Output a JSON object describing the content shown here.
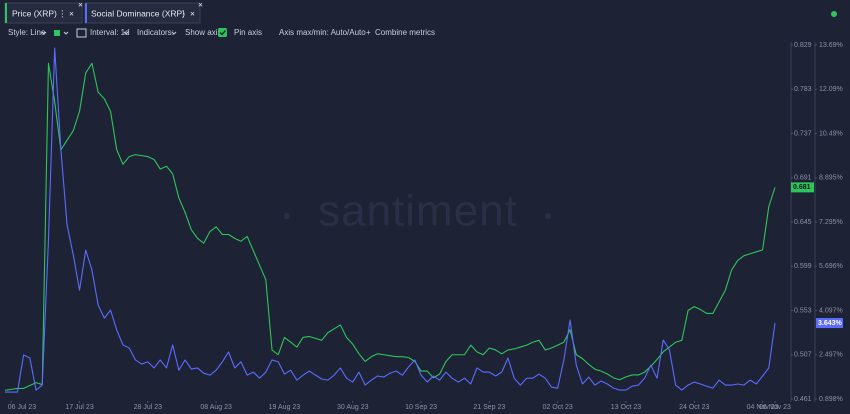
{
  "toolbar": {
    "style": "Style: Line",
    "interval": "Interval: 1d",
    "indicators": "Indicators:",
    "show_axis": "Show axis",
    "pin_axis": "Pin axis",
    "axis_minmax": "Axis max/min: Auto/Auto",
    "combine": "Combine metrics"
  },
  "chart_data": {
    "type": "line",
    "watermark": "santiment",
    "x": [
      "2023-07-05",
      "2023-07-06",
      "2023-07-07",
      "2023-07-08",
      "2023-07-09",
      "2023-07-10",
      "2023-07-11",
      "2023-07-12",
      "2023-07-13",
      "2023-07-14",
      "2023-07-15",
      "2023-07-16",
      "2023-07-17",
      "2023-07-18",
      "2023-07-19",
      "2023-07-20",
      "2023-07-21",
      "2023-07-22",
      "2023-07-23",
      "2023-07-24",
      "2023-07-25",
      "2023-07-26",
      "2023-07-27",
      "2023-07-28",
      "2023-07-29",
      "2023-07-30",
      "2023-07-31",
      "2023-08-01",
      "2023-08-02",
      "2023-08-03",
      "2023-08-04",
      "2023-08-05",
      "2023-08-06",
      "2023-08-07",
      "2023-08-08",
      "2023-08-09",
      "2023-08-10",
      "2023-08-11",
      "2023-08-12",
      "2023-08-13",
      "2023-08-14",
      "2023-08-15",
      "2023-08-16",
      "2023-08-17",
      "2023-08-18",
      "2023-08-19",
      "2023-08-20",
      "2023-08-21",
      "2023-08-22",
      "2023-08-23",
      "2023-08-24",
      "2023-08-25",
      "2023-08-26",
      "2023-08-27",
      "2023-08-28",
      "2023-08-29",
      "2023-08-30",
      "2023-08-31",
      "2023-09-01",
      "2023-09-02",
      "2023-09-03",
      "2023-09-04",
      "2023-09-05",
      "2023-09-06",
      "2023-09-07",
      "2023-09-08",
      "2023-09-09",
      "2023-09-10",
      "2023-09-11",
      "2023-09-12",
      "2023-09-13",
      "2023-09-14",
      "2023-09-15",
      "2023-09-16",
      "2023-09-17",
      "2023-09-18",
      "2023-09-19",
      "2023-09-20",
      "2023-09-21",
      "2023-09-22",
      "2023-09-23",
      "2023-09-24",
      "2023-09-25",
      "2023-09-26",
      "2023-09-27",
      "2023-09-28",
      "2023-09-29",
      "2023-09-30",
      "2023-10-01",
      "2023-10-02",
      "2023-10-03",
      "2023-10-04",
      "2023-10-05",
      "2023-10-06",
      "2023-10-07",
      "2023-10-08",
      "2023-10-09",
      "2023-10-10",
      "2023-10-11",
      "2023-10-12",
      "2023-10-13",
      "2023-10-14",
      "2023-10-15",
      "2023-10-16",
      "2023-10-17",
      "2023-10-18",
      "2023-10-19",
      "2023-10-20",
      "2023-10-21",
      "2023-10-22",
      "2023-10-23",
      "2023-10-24",
      "2023-10-25",
      "2023-10-26",
      "2023-10-27",
      "2023-10-28",
      "2023-10-29",
      "2023-10-30",
      "2023-10-31",
      "2023-11-01",
      "2023-11-02",
      "2023-11-03",
      "2023-11-04",
      "2023-11-05",
      "2023-11-06"
    ],
    "xlim": [
      "2023-07-05",
      "2023-11-06"
    ],
    "xticks": [
      {
        "value": "2023-07-06",
        "label": "06 Jul 23"
      },
      {
        "value": "2023-07-17",
        "label": "17 Jul 23"
      },
      {
        "value": "2023-07-28",
        "label": "28 Jul 23"
      },
      {
        "value": "2023-08-08",
        "label": "08 Aug 23"
      },
      {
        "value": "2023-08-19",
        "label": "19 Aug 23"
      },
      {
        "value": "2023-08-30",
        "label": "30 Aug 23"
      },
      {
        "value": "2023-09-10",
        "label": "10 Sep 23"
      },
      {
        "value": "2023-09-21",
        "label": "21 Sep 23"
      },
      {
        "value": "2023-10-02",
        "label": "02 Oct 23"
      },
      {
        "value": "2023-10-13",
        "label": "13 Oct 23"
      },
      {
        "value": "2023-10-24",
        "label": "24 Oct 23"
      },
      {
        "value": "2023-11-04",
        "label": "04 Nov 23"
      },
      {
        "value": "2023-11-06",
        "label": "06 Nov 23"
      }
    ],
    "ylim": [
      0.461,
      0.829
    ],
    "yticks": [
      0.461,
      0.507,
      0.553,
      0.599,
      0.645,
      0.691,
      0.737,
      0.783,
      0.829
    ],
    "y2lim": [
      0.898,
      13.69
    ],
    "y2ticks": [
      {
        "value": 0.898,
        "label": "0.898%"
      },
      {
        "value": 2.497,
        "label": "2.497%"
      },
      {
        "value": 4.097,
        "label": "4.097%"
      },
      {
        "value": 5.696,
        "label": "5.696%"
      },
      {
        "value": 7.295,
        "label": "7.295%"
      },
      {
        "value": 8.895,
        "label": "8.895%"
      },
      {
        "value": 10.49,
        "label": "10.49%"
      },
      {
        "value": 12.09,
        "label": "12.09%"
      },
      {
        "value": 13.69,
        "label": "13.69%"
      }
    ],
    "series": [
      {
        "name": "Price (XRP)",
        "color": "#2ec55a",
        "values": [
          0.47,
          0.471,
          0.472,
          0.472,
          0.475,
          0.478,
          0.476,
          0.81,
          0.77,
          0.72,
          0.73,
          0.74,
          0.76,
          0.8,
          0.81,
          0.78,
          0.773,
          0.76,
          0.72,
          0.705,
          0.713,
          0.715,
          0.714,
          0.713,
          0.71,
          0.7,
          0.703,
          0.695,
          0.67,
          0.655,
          0.637,
          0.628,
          0.623,
          0.635,
          0.64,
          0.632,
          0.632,
          0.628,
          0.625,
          0.63,
          0.615,
          0.6,
          0.585,
          0.512,
          0.507,
          0.525,
          0.52,
          0.515,
          0.525,
          0.526,
          0.524,
          0.522,
          0.53,
          0.534,
          0.538,
          0.525,
          0.518,
          0.508,
          0.5,
          0.505,
          0.508,
          0.507,
          0.506,
          0.505,
          0.505,
          0.504,
          0.5,
          0.49,
          0.49,
          0.483,
          0.487,
          0.5,
          0.507,
          0.507,
          0.507,
          0.517,
          0.51,
          0.507,
          0.514,
          0.512,
          0.508,
          0.512,
          0.513,
          0.515,
          0.517,
          0.52,
          0.522,
          0.512,
          0.514,
          0.517,
          0.52,
          0.533,
          0.507,
          0.503,
          0.497,
          0.492,
          0.49,
          0.487,
          0.483,
          0.481,
          0.484,
          0.486,
          0.486,
          0.489,
          0.495,
          0.502,
          0.51,
          0.515,
          0.52,
          0.522,
          0.553,
          0.557,
          0.554,
          0.55,
          0.55,
          0.562,
          0.574,
          0.595,
          0.605,
          0.61,
          0.612,
          0.614,
          0.616,
          0.661,
          0.681
        ]
      },
      {
        "name": "Social Dominance (XRP)",
        "color": "#5a6cff",
        "axis": "y2",
        "last_value_label": "3.643%",
        "values": [
          1.15,
          1.15,
          1.15,
          2.49,
          2.38,
          1.22,
          1.4,
          6.64,
          13.58,
          9.9,
          7.18,
          6.1,
          4.83,
          6.28,
          5.56,
          4.29,
          3.82,
          4.11,
          3.39,
          2.85,
          2.74,
          2.31,
          2.16,
          2.24,
          2.02,
          2.31,
          2.02,
          2.85,
          1.94,
          2.31,
          1.98,
          2.02,
          1.83,
          1.76,
          1.94,
          2.24,
          2.6,
          2.02,
          2.24,
          1.76,
          1.87,
          1.65,
          1.87,
          2.31,
          2.24,
          1.8,
          1.94,
          1.58,
          1.76,
          1.91,
          1.76,
          1.62,
          1.58,
          1.76,
          2.02,
          1.65,
          1.51,
          1.87,
          1.4,
          1.58,
          1.73,
          1.69,
          1.83,
          1.91,
          1.76,
          2.06,
          2.31,
          1.76,
          1.51,
          1.73,
          1.58,
          1.87,
          1.65,
          1.51,
          1.65,
          1.44,
          2.02,
          1.87,
          1.87,
          1.73,
          1.87,
          2.38,
          1.65,
          1.4,
          1.65,
          1.65,
          1.8,
          1.65,
          1.33,
          1.29,
          2.31,
          3.75,
          2.12,
          1.44,
          1.69,
          1.4,
          1.55,
          1.44,
          1.29,
          1.22,
          1.22,
          1.36,
          1.4,
          1.65,
          2.12,
          1.65,
          3.03,
          2.67,
          1.4,
          1.22,
          1.4,
          1.51,
          1.44,
          1.36,
          1.29,
          1.58,
          1.4,
          1.4,
          1.44,
          1.4,
          1.58,
          1.44,
          1.73,
          2.02,
          3.643
        ]
      }
    ]
  }
}
